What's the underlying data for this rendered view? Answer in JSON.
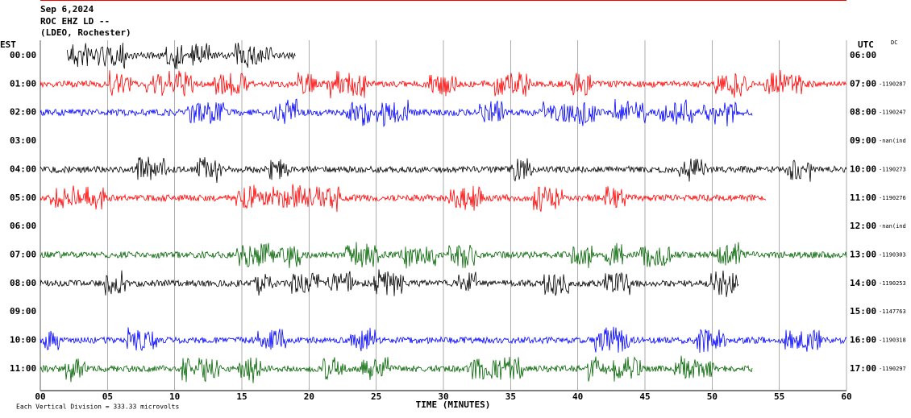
{
  "chart_data": {
    "type": "helicorder",
    "title_lines": [
      "Sep 6,2024",
      "ROC EHZ LD --",
      "(LDEO, Rochester)"
    ],
    "left_axis_label": "EST",
    "right_axis_label": "UTC",
    "corner_label": "DC",
    "xlabel": "TIME (MINUTES)",
    "footer": "Each Vertical Division =  333.33 microvolts",
    "xlim": [
      0,
      60
    ],
    "xticks": [
      {
        "value": 0,
        "label": "00"
      },
      {
        "value": 5,
        "label": "05"
      },
      10,
      15,
      20,
      25,
      30,
      35,
      40,
      45,
      50,
      55,
      60
    ],
    "grid": true,
    "rows": [
      {
        "left": "00:00",
        "right": "06:00",
        "code": null,
        "color": "#000000",
        "start": 2,
        "end": 19
      },
      {
        "left": "01:00",
        "right": "07:00",
        "code": "-1190287",
        "color": "#ff0000",
        "start": 0,
        "end": 60
      },
      {
        "left": "02:00",
        "right": "08:00",
        "code": "-1190247",
        "color": "#0000ff",
        "start": 0,
        "end": 53
      },
      {
        "left": "03:00",
        "right": "09:00",
        "code": "-nan(ind",
        "color": "#006400",
        "start": null,
        "end": null
      },
      {
        "left": "04:00",
        "right": "10:00",
        "code": "-1190273",
        "color": "#000000",
        "start": 0,
        "end": 60
      },
      {
        "left": "05:00",
        "right": "11:00",
        "code": "-1190276",
        "color": "#ff0000",
        "start": 0,
        "end": 54
      },
      {
        "left": "06:00",
        "right": "12:00",
        "code": "-nan(ind",
        "color": "#0000ff",
        "start": null,
        "end": null
      },
      {
        "left": "07:00",
        "right": "13:00",
        "code": "-1190303",
        "color": "#006400",
        "start": 0,
        "end": 60
      },
      {
        "left": "08:00",
        "right": "14:00",
        "code": "-1190253",
        "color": "#000000",
        "start": 0,
        "end": 52
      },
      {
        "left": "09:00",
        "right": "15:00",
        "code": "-1147763",
        "color": "#ff0000",
        "start": null,
        "end": null
      },
      {
        "left": "10:00",
        "right": "16:00",
        "code": "-1190318",
        "color": "#0000ff",
        "start": 0,
        "end": 60
      },
      {
        "left": "11:00",
        "right": "17:00",
        "code": "-1190297",
        "color": "#006400",
        "start": 0,
        "end": 53
      }
    ]
  }
}
